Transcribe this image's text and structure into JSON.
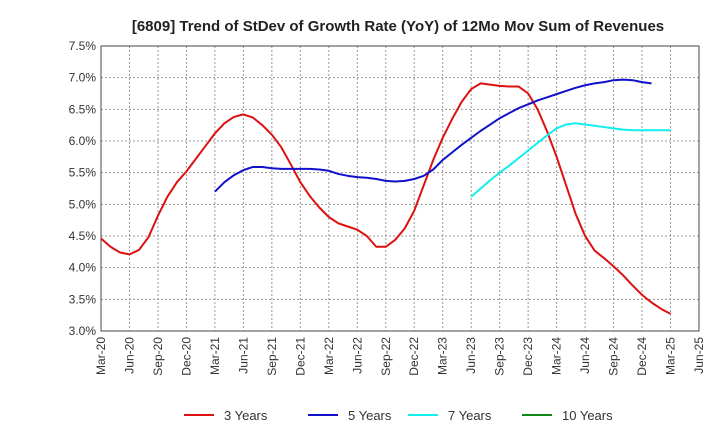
{
  "chart_data": {
    "type": "line",
    "title": "[6809]  Trend of StDev of Growth Rate (YoY) of 12Mo Mov Sum of Revenues",
    "xlabel": "",
    "ylabel": "",
    "ylim": [
      3.0,
      7.5
    ],
    "y_ticks": [
      "3.0%",
      "3.5%",
      "4.0%",
      "4.5%",
      "5.0%",
      "5.5%",
      "6.0%",
      "6.5%",
      "7.0%",
      "7.5%"
    ],
    "x_ticks": [
      "Mar-20",
      "Jun-20",
      "Sep-20",
      "Dec-20",
      "Mar-21",
      "Jun-21",
      "Sep-21",
      "Dec-21",
      "Mar-22",
      "Jun-22",
      "Sep-22",
      "Dec-22",
      "Mar-23",
      "Jun-23",
      "Sep-23",
      "Dec-23",
      "Mar-24",
      "Jun-24",
      "Sep-24",
      "Dec-24",
      "Mar-25",
      "Jun-25"
    ],
    "grid": true,
    "legend_position": "bottom",
    "series": [
      {
        "name": "3 Years",
        "color": "#dd1111",
        "start_index": 0,
        "values": [
          4.46,
          4.33,
          4.24,
          4.21,
          4.28,
          4.48,
          4.82,
          5.12,
          5.35,
          5.52,
          5.72,
          5.92,
          6.12,
          6.28,
          6.38,
          6.42,
          6.37,
          6.25,
          6.1,
          5.9,
          5.63,
          5.35,
          5.13,
          4.95,
          4.8,
          4.7,
          4.65,
          4.6,
          4.5,
          4.33,
          4.33,
          4.44,
          4.62,
          4.9,
          5.3,
          5.7,
          6.05,
          6.35,
          6.62,
          6.82,
          6.91,
          6.89,
          6.87,
          6.86,
          6.86,
          6.75,
          6.5,
          6.15,
          5.75,
          5.3,
          4.85,
          4.5,
          4.27,
          4.15,
          4.02,
          3.88,
          3.72,
          3.57,
          3.45,
          3.35,
          3.27
        ]
      },
      {
        "name": "5 Years",
        "color": "#1111cc",
        "start_index": 12,
        "values": [
          5.2,
          5.35,
          5.46,
          5.54,
          5.59,
          5.59,
          5.57,
          5.56,
          5.56,
          5.56,
          5.56,
          5.55,
          5.53,
          5.48,
          5.45,
          5.43,
          5.42,
          5.4,
          5.37,
          5.36,
          5.37,
          5.4,
          5.45,
          5.55,
          5.7,
          5.82,
          5.94,
          6.05,
          6.16,
          6.26,
          6.36,
          6.44,
          6.52,
          6.58,
          6.64,
          6.69,
          6.74,
          6.79,
          6.84,
          6.88,
          6.91,
          6.93,
          6.96,
          6.97,
          6.96,
          6.93,
          6.91
        ]
      },
      {
        "name": "7 Years",
        "color": "#11eeee",
        "start_index": 39,
        "values": [
          5.12,
          5.25,
          5.38,
          5.5,
          5.61,
          5.73,
          5.85,
          5.97,
          6.09,
          6.2,
          6.26,
          6.28,
          6.26,
          6.24,
          6.22,
          6.2,
          6.18,
          6.17,
          6.17,
          6.17,
          6.17,
          6.17
        ]
      },
      {
        "name": "10 Years",
        "color": "#118811",
        "start_index": 0,
        "values": []
      }
    ]
  }
}
